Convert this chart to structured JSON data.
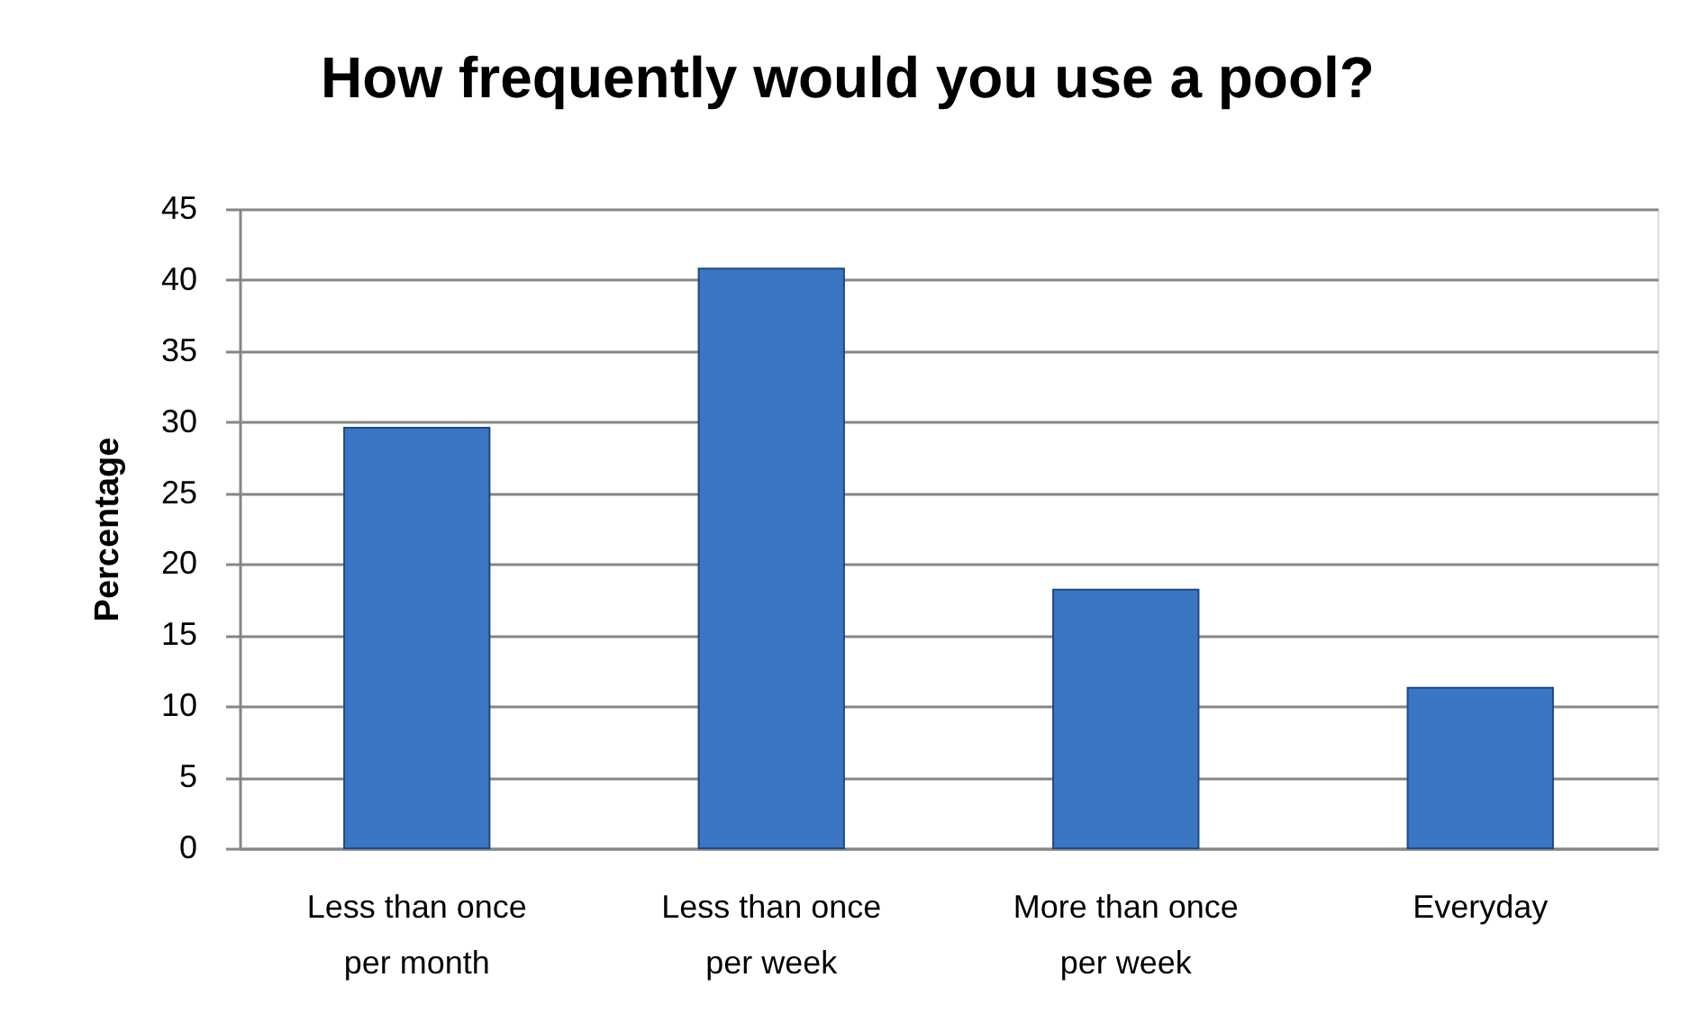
{
  "chart_data": {
    "type": "bar",
    "title": "How frequently would you use a pool?",
    "ylabel": "Percentage",
    "categories": [
      "Less than once per month",
      "Less than once per week",
      "More than once per week",
      "Everyday"
    ],
    "values": [
      29.6,
      40.8,
      18.2,
      11.3
    ],
    "color": "#3a76c4",
    "ylim": [
      0,
      45
    ],
    "yticks": [
      0,
      5,
      10,
      15,
      20,
      25,
      30,
      35,
      40,
      45
    ],
    "grid": "y"
  }
}
